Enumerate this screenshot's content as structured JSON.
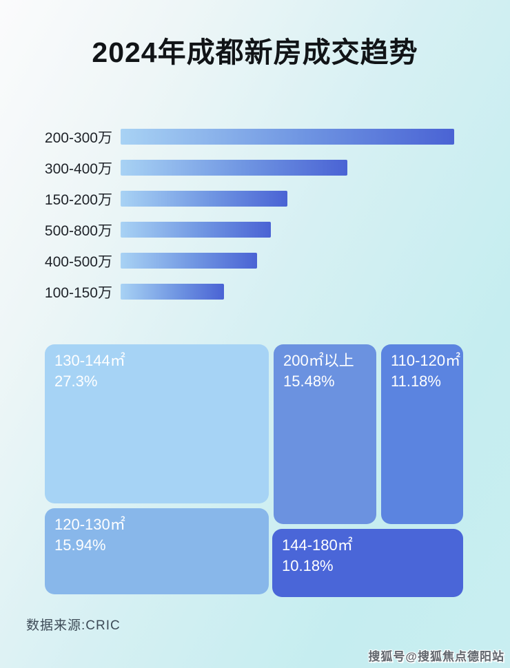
{
  "title": "2024年成都新房成交趋势",
  "colors": {
    "background_top_left": "#fbfbfc",
    "background_bottom_right": "#c5edf0",
    "bar_gradient_start": "#a8d2f4",
    "bar_gradient_end": "#4a63d4",
    "bar_label_text": "#20242a",
    "treemap_text": "#ffffff"
  },
  "chart_data": [
    {
      "type": "bar",
      "orientation": "horizontal",
      "title": "2024年成都新房成交趋势",
      "xlabel": "",
      "ylabel": "",
      "grid": false,
      "legend": false,
      "categories": [
        "200-300万",
        "300-400万",
        "150-200万",
        "500-800万",
        "400-500万",
        "100-150万"
      ],
      "values_note": "bars carry no printed numbers; lengths estimated as percent of longest bar",
      "relative_lengths_pct": [
        100,
        68,
        50,
        45,
        41,
        31
      ]
    },
    {
      "type": "treemap",
      "title": "",
      "legend": false,
      "items": [
        {
          "label": "130-144㎡",
          "value_pct": 27.3,
          "value_text": "27.3%",
          "color": "#a6d3f5"
        },
        {
          "label": "200㎡以上",
          "value_pct": 15.48,
          "value_text": "15.48%",
          "color": "#6b92e0"
        },
        {
          "label": "110-120㎡",
          "value_pct": 11.18,
          "value_text": "11.18%",
          "color": "#5b84e0"
        },
        {
          "label": "120-130㎡",
          "value_pct": 15.94,
          "value_text": "15.94%",
          "color": "#88b7ea"
        },
        {
          "label": "144-180㎡",
          "value_pct": 10.18,
          "value_text": "10.18%",
          "color": "#4a66d8"
        }
      ]
    }
  ],
  "footer": {
    "source_label": "数据来源:CRIC"
  },
  "watermark": {
    "text": "搜狐号@搜狐焦点德阳站"
  }
}
